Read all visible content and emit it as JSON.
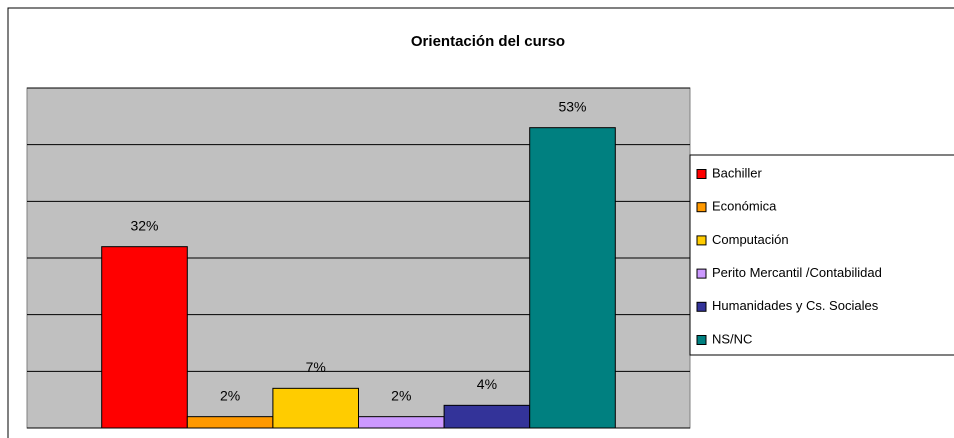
{
  "chart_data": {
    "type": "bar",
    "title": "Orientación del curso",
    "series": [
      {
        "name": "Bachiller",
        "color": "#ff0000",
        "values": [
          32
        ],
        "value_labels": [
          "32%"
        ]
      },
      {
        "name": "Económica",
        "color": "#ff9900",
        "values": [
          2
        ],
        "value_labels": [
          "2%"
        ]
      },
      {
        "name": "Computación",
        "color": "#ffcc00",
        "values": [
          7
        ],
        "value_labels": [
          "7%"
        ]
      },
      {
        "name": "Perito Mercantil /Contabilidad",
        "color": "#cc99ff",
        "values": [
          2
        ],
        "value_labels": [
          "2%"
        ]
      },
      {
        "name": "Humanidades y Cs. Sociales",
        "color": "#333399",
        "values": [
          4
        ],
        "value_labels": [
          "4%"
        ]
      },
      {
        "name": "NS/NC",
        "color": "#008080",
        "values": [
          53
        ],
        "value_labels": [
          "53%"
        ]
      }
    ],
    "ylim": [
      0,
      60
    ],
    "yticks": [
      0,
      10,
      20,
      30,
      40,
      50,
      60
    ],
    "grid": true,
    "legend": "right"
  }
}
